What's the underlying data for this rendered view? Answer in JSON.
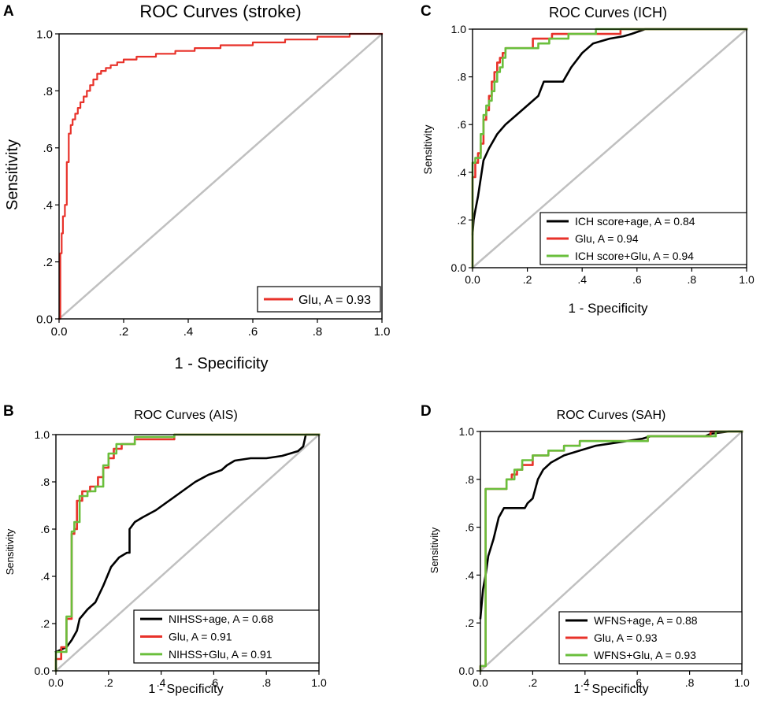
{
  "colors": {
    "black": "#000000",
    "red": "#e8322a",
    "green": "#6abf3c",
    "diagonal": "#c0c0c0",
    "frame": "#000000"
  },
  "chart_data": [
    {
      "panel": "A",
      "type": "line",
      "title": "ROC Curves (stroke)",
      "xlabel": "1 - Specificity",
      "ylabel": "Sensitivity",
      "xlim": [
        0,
        1
      ],
      "ylim": [
        0,
        1
      ],
      "xticks": [
        "0.0",
        ".2",
        ".4",
        ".6",
        ".8",
        "1.0"
      ],
      "yticks": [
        "0.0",
        ".2",
        ".4",
        ".6",
        ".8",
        "1.0"
      ],
      "reference_line": "diagonal",
      "legend_position": "bottom-right",
      "series": [
        {
          "name": "Glu, A = 0.93",
          "color": "red",
          "x": [
            0,
            0.004,
            0.004,
            0.008,
            0.008,
            0.012,
            0.012,
            0.018,
            0.018,
            0.024,
            0.024,
            0.03,
            0.03,
            0.036,
            0.036,
            0.042,
            0.042,
            0.05,
            0.05,
            0.058,
            0.058,
            0.066,
            0.066,
            0.076,
            0.076,
            0.086,
            0.086,
            0.096,
            0.096,
            0.106,
            0.106,
            0.118,
            0.118,
            0.13,
            0.13,
            0.145,
            0.145,
            0.16,
            0.16,
            0.18,
            0.18,
            0.2,
            0.2,
            0.24,
            0.24,
            0.3,
            0.3,
            0.36,
            0.36,
            0.42,
            0.42,
            0.5,
            0.5,
            0.6,
            0.6,
            0.7,
            0.7,
            0.8,
            0.8,
            0.9,
            0.9,
            1.0
          ],
          "y": [
            0,
            0,
            0.23,
            0.23,
            0.3,
            0.3,
            0.36,
            0.36,
            0.4,
            0.4,
            0.55,
            0.55,
            0.65,
            0.65,
            0.68,
            0.68,
            0.7,
            0.7,
            0.72,
            0.72,
            0.74,
            0.74,
            0.76,
            0.76,
            0.78,
            0.78,
            0.8,
            0.8,
            0.82,
            0.82,
            0.84,
            0.84,
            0.86,
            0.86,
            0.87,
            0.87,
            0.88,
            0.88,
            0.89,
            0.89,
            0.9,
            0.9,
            0.91,
            0.91,
            0.92,
            0.92,
            0.93,
            0.93,
            0.94,
            0.94,
            0.95,
            0.95,
            0.96,
            0.96,
            0.97,
            0.97,
            0.98,
            0.98,
            0.99,
            0.99,
            1.0,
            1.0
          ]
        }
      ]
    },
    {
      "panel": "C",
      "type": "line",
      "title": "ROC Curves (ICH)",
      "xlabel": "1 - Specificity",
      "ylabel": "Sensitivity",
      "xlim": [
        0,
        1
      ],
      "ylim": [
        0,
        1
      ],
      "xticks": [
        "0.0",
        ".2",
        ".4",
        ".6",
        ".8",
        "1.0"
      ],
      "yticks": [
        "0.0",
        ".2",
        ".4",
        ".6",
        ".8",
        "1.0"
      ],
      "reference_line": "diagonal",
      "legend_position": "bottom-right",
      "series": [
        {
          "name": "ICH score+age, A = 0.84",
          "color": "black",
          "x": [
            0,
            0.004,
            0.01,
            0.02,
            0.04,
            0.06,
            0.09,
            0.12,
            0.16,
            0.2,
            0.24,
            0.26,
            0.26,
            0.33,
            0.36,
            0.4,
            0.44,
            0.5,
            0.55,
            0.58,
            0.63,
            1.0
          ],
          "y": [
            0.14,
            0.2,
            0.24,
            0.3,
            0.45,
            0.5,
            0.56,
            0.6,
            0.64,
            0.68,
            0.72,
            0.78,
            0.78,
            0.78,
            0.84,
            0.9,
            0.94,
            0.96,
            0.97,
            0.98,
            1.0,
            1.0
          ],
          "line_style": "smooth"
        },
        {
          "name": "Glu, A = 0.94",
          "color": "red",
          "x": [
            0,
            0,
            0.01,
            0.01,
            0.02,
            0.02,
            0.03,
            0.03,
            0.04,
            0.04,
            0.05,
            0.05,
            0.06,
            0.06,
            0.07,
            0.07,
            0.08,
            0.08,
            0.09,
            0.09,
            0.1,
            0.1,
            0.11,
            0.11,
            0.12,
            0.12,
            0.22,
            0.22,
            0.29,
            0.29,
            0.45,
            0.45,
            0.54,
            0.54,
            1.0
          ],
          "y": [
            0,
            0.38,
            0.38,
            0.44,
            0.44,
            0.48,
            0.48,
            0.52,
            0.52,
            0.62,
            0.62,
            0.66,
            0.66,
            0.72,
            0.72,
            0.78,
            0.78,
            0.82,
            0.82,
            0.86,
            0.86,
            0.88,
            0.88,
            0.9,
            0.9,
            0.92,
            0.92,
            0.96,
            0.96,
            0.98,
            0.98,
            0.98,
            0.98,
            1.0,
            1.0
          ]
        },
        {
          "name": "ICH score+Glu, A = 0.94",
          "color": "green",
          "x": [
            0,
            0,
            0.01,
            0.01,
            0.03,
            0.03,
            0.04,
            0.04,
            0.05,
            0.05,
            0.06,
            0.06,
            0.07,
            0.07,
            0.08,
            0.08,
            0.09,
            0.09,
            0.1,
            0.1,
            0.11,
            0.11,
            0.12,
            0.12,
            0.18,
            0.18,
            0.24,
            0.24,
            0.28,
            0.28,
            0.35,
            0.35,
            0.45,
            0.45,
            1.0
          ],
          "y": [
            0,
            0.44,
            0.44,
            0.46,
            0.46,
            0.56,
            0.56,
            0.64,
            0.64,
            0.68,
            0.68,
            0.7,
            0.7,
            0.74,
            0.74,
            0.78,
            0.78,
            0.82,
            0.82,
            0.84,
            0.84,
            0.88,
            0.88,
            0.92,
            0.92,
            0.92,
            0.92,
            0.94,
            0.94,
            0.96,
            0.96,
            0.98,
            0.98,
            1.0,
            1.0
          ]
        }
      ]
    },
    {
      "panel": "B",
      "type": "line",
      "title": "ROC Curves (AIS)",
      "xlabel": "1 - Specificity",
      "ylabel": "Sensitivity",
      "xlim": [
        0,
        1
      ],
      "ylim": [
        0,
        1
      ],
      "xticks": [
        "0.0",
        ".2",
        ".4",
        ".6",
        ".8",
        "1.0"
      ],
      "yticks": [
        "0.0",
        ".2",
        ".4",
        ".6",
        ".8",
        "1.0"
      ],
      "reference_line": "diagonal",
      "legend_position": "bottom-right",
      "series": [
        {
          "name": "NIHSS+age, A = 0.68",
          "color": "black",
          "x": [
            0,
            0.04,
            0.06,
            0.08,
            0.09,
            0.12,
            0.15,
            0.18,
            0.21,
            0.24,
            0.27,
            0.28,
            0.28,
            0.3,
            0.33,
            0.38,
            0.43,
            0.48,
            0.53,
            0.58,
            0.63,
            0.65,
            0.68,
            0.74,
            0.8,
            0.86,
            0.92,
            0.94,
            0.95,
            1.0
          ],
          "y": [
            0.08,
            0.1,
            0.13,
            0.17,
            0.22,
            0.26,
            0.29,
            0.36,
            0.44,
            0.48,
            0.5,
            0.5,
            0.6,
            0.63,
            0.65,
            0.68,
            0.72,
            0.76,
            0.8,
            0.83,
            0.85,
            0.87,
            0.89,
            0.9,
            0.9,
            0.91,
            0.93,
            0.95,
            1.0,
            1.0
          ],
          "line_style": "smooth"
        },
        {
          "name": "Glu, A = 0.91",
          "color": "red",
          "x": [
            0,
            0,
            0.02,
            0.02,
            0.04,
            0.04,
            0.05,
            0.05,
            0.06,
            0.06,
            0.07,
            0.07,
            0.08,
            0.08,
            0.1,
            0.1,
            0.13,
            0.13,
            0.16,
            0.16,
            0.18,
            0.18,
            0.2,
            0.2,
            0.22,
            0.22,
            0.25,
            0.25,
            0.3,
            0.3,
            0.45,
            0.45,
            1.0
          ],
          "y": [
            0,
            0.05,
            0.05,
            0.1,
            0.1,
            0.22,
            0.22,
            0.22,
            0.22,
            0.58,
            0.58,
            0.6,
            0.6,
            0.72,
            0.72,
            0.76,
            0.76,
            0.78,
            0.78,
            0.82,
            0.82,
            0.86,
            0.86,
            0.9,
            0.9,
            0.94,
            0.94,
            0.96,
            0.96,
            0.98,
            0.98,
            1.0,
            1.0
          ]
        },
        {
          "name": "NIHSS+Glu, A = 0.91",
          "color": "green",
          "x": [
            0,
            0,
            0.04,
            0.04,
            0.06,
            0.06,
            0.07,
            0.07,
            0.09,
            0.09,
            0.12,
            0.12,
            0.15,
            0.15,
            0.18,
            0.18,
            0.2,
            0.2,
            0.23,
            0.23,
            0.3,
            0.3,
            0.45,
            0.45,
            1.0
          ],
          "y": [
            0,
            0.08,
            0.08,
            0.23,
            0.23,
            0.59,
            0.59,
            0.63,
            0.63,
            0.74,
            0.74,
            0.76,
            0.76,
            0.78,
            0.78,
            0.87,
            0.87,
            0.92,
            0.92,
            0.96,
            0.96,
            0.99,
            0.99,
            1.0,
            1.0
          ]
        }
      ]
    },
    {
      "panel": "D",
      "type": "line",
      "title": "ROC Curves (SAH)",
      "xlabel": "1 - Specificity",
      "ylabel": "Sensitivity",
      "xlim": [
        0,
        1
      ],
      "ylim": [
        0,
        1
      ],
      "xticks": [
        "0.0",
        ".2",
        ".4",
        ".6",
        ".8",
        "1.0"
      ],
      "yticks": [
        "0.0",
        ".2",
        ".4",
        ".6",
        ".8",
        "1.0"
      ],
      "reference_line": "diagonal",
      "legend_position": "bottom-right",
      "series": [
        {
          "name": "WFNS+age, A = 0.88",
          "color": "black",
          "x": [
            0,
            0.01,
            0.02,
            0.03,
            0.05,
            0.07,
            0.09,
            0.11,
            0.13,
            0.17,
            0.18,
            0.2,
            0.22,
            0.24,
            0.27,
            0.32,
            0.38,
            0.44,
            0.5,
            0.56,
            0.62,
            0.65,
            0.86,
            0.88,
            0.95,
            1.0
          ],
          "y": [
            0.22,
            0.34,
            0.4,
            0.48,
            0.55,
            0.64,
            0.68,
            0.68,
            0.68,
            0.68,
            0.7,
            0.72,
            0.8,
            0.84,
            0.87,
            0.9,
            0.92,
            0.94,
            0.95,
            0.96,
            0.97,
            0.98,
            0.98,
            0.99,
            1.0,
            1.0
          ],
          "line_style": "smooth"
        },
        {
          "name": "Glu, A = 0.93",
          "color": "red",
          "x": [
            0,
            0,
            0.02,
            0.02,
            0.1,
            0.1,
            0.12,
            0.12,
            0.14,
            0.14,
            0.16,
            0.16,
            0.2,
            0.2,
            0.26,
            0.26,
            0.32,
            0.32,
            0.38,
            0.38,
            0.64,
            0.64,
            0.88,
            0.88,
            1.0
          ],
          "y": [
            0,
            0.02,
            0.02,
            0.76,
            0.76,
            0.8,
            0.8,
            0.82,
            0.82,
            0.84,
            0.84,
            0.86,
            0.86,
            0.9,
            0.9,
            0.92,
            0.92,
            0.94,
            0.94,
            0.96,
            0.96,
            0.98,
            0.98,
            1.0,
            1.0
          ]
        },
        {
          "name": "WFNS+Glu, A = 0.93",
          "color": "green",
          "x": [
            0,
            0,
            0.02,
            0.02,
            0.1,
            0.1,
            0.13,
            0.13,
            0.16,
            0.16,
            0.2,
            0.2,
            0.26,
            0.26,
            0.32,
            0.32,
            0.38,
            0.38,
            0.64,
            0.64,
            0.9,
            0.9,
            1.0
          ],
          "y": [
            0,
            0.02,
            0.02,
            0.76,
            0.76,
            0.8,
            0.8,
            0.84,
            0.84,
            0.88,
            0.88,
            0.9,
            0.9,
            0.92,
            0.92,
            0.94,
            0.94,
            0.96,
            0.96,
            0.98,
            0.98,
            1.0,
            1.0
          ]
        }
      ]
    }
  ]
}
